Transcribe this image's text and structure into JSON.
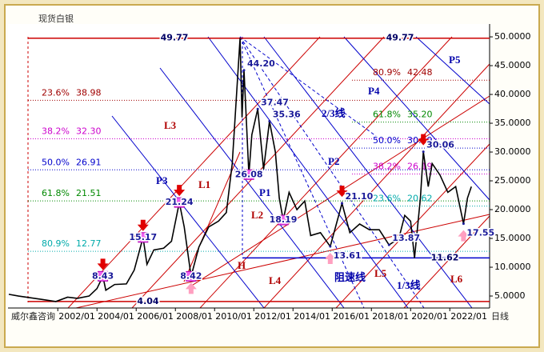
{
  "chart_data": {
    "type": "line",
    "title": "现货白银",
    "footer": "威尔鑫咨询",
    "period": "日线",
    "color": "#000000",
    "x": [
      1999.5,
      2000.0,
      2000.6,
      2001.2,
      2001.9,
      2002.5,
      2003.0,
      2003.6,
      2004.0,
      2004.3,
      2004.45,
      2004.9,
      2005.5,
      2005.9,
      2006.35,
      2006.55,
      2006.9,
      2007.4,
      2007.8,
      2008.2,
      2008.45,
      2008.8,
      2009.2,
      2009.7,
      2010.2,
      2010.6,
      2010.9,
      2011.3,
      2011.4,
      2011.5,
      2011.75,
      2011.9,
      2012.2,
      2012.5,
      2012.8,
      2013.1,
      2013.3,
      2013.5,
      2013.8,
      2014.2,
      2014.6,
      2014.9,
      2015.4,
      2015.9,
      2016.5,
      2016.9,
      2017.4,
      2017.9,
      2018.4,
      2018.9,
      2019.4,
      2019.7,
      2020.0,
      2020.2,
      2020.5,
      2020.65,
      2020.9,
      2021.1,
      2021.5,
      2021.9,
      2022.3,
      2022.7,
      2022.9,
      2023.1
    ],
    "values": [
      5.3,
      5.0,
      4.7,
      4.4,
      4.04,
      4.8,
      4.6,
      5.0,
      6.3,
      8.43,
      6.0,
      7.0,
      7.1,
      9.5,
      15.17,
      10.5,
      13.0,
      13.3,
      14.5,
      21.24,
      17.0,
      8.42,
      13.5,
      17.0,
      18.0,
      19.5,
      28.0,
      49.77,
      36.0,
      44.2,
      26.08,
      33.0,
      37.47,
      27.0,
      35.36,
      30.0,
      22.0,
      18.19,
      23.0,
      20.0,
      21.5,
      15.5,
      16.0,
      13.61,
      21.1,
      16.0,
      17.5,
      16.5,
      16.5,
      13.87,
      15.0,
      19.0,
      18.0,
      11.62,
      22.0,
      30.06,
      24.0,
      28.0,
      26.0,
      23.0,
      24.0,
      17.55,
      22.0,
      24.0
    ],
    "xlim": [
      1999.46,
      2024.03
    ],
    "xticks": [
      {
        "value": 2002,
        "label": "2002/01"
      },
      {
        "value": 2004,
        "label": "2004/01"
      },
      {
        "value": 2006,
        "label": "2006/01"
      },
      {
        "value": 2008,
        "label": "2008/01"
      },
      {
        "value": 2010,
        "label": "2010/01"
      },
      {
        "value": 2012,
        "label": "2012/01"
      },
      {
        "value": 2014,
        "label": "2014/01"
      },
      {
        "value": 2016,
        "label": "2016/01"
      },
      {
        "value": 2018,
        "label": "2018/01"
      },
      {
        "value": 2020,
        "label": "2020/01"
      },
      {
        "value": 2022,
        "label": "2022/01"
      }
    ],
    "ylim": [
      2.92,
      52.23
    ],
    "yticks": [
      {
        "value": 5,
        "label": "5.0000"
      },
      {
        "value": 10,
        "label": "10.0000"
      },
      {
        "value": 15,
        "label": "15.0000"
      },
      {
        "value": 20,
        "label": "20.0000"
      },
      {
        "value": 25,
        "label": "25.0000"
      },
      {
        "value": 30,
        "label": "30.0000"
      },
      {
        "value": 35,
        "label": "35.0000"
      },
      {
        "value": 40,
        "label": "40.0000"
      },
      {
        "value": 45,
        "label": "45.0000"
      },
      {
        "value": 50,
        "label": "50.0000"
      }
    ],
    "key_levels": [
      {
        "value": 49.77,
        "color": "#cc0000"
      },
      {
        "value": 4.04,
        "color": "#cc0000"
      },
      {
        "value": 11.62,
        "color": "#0000cc"
      }
    ],
    "fib_left": [
      {
        "ratio": "23.6%",
        "value": 38.98,
        "color": "#a00000"
      },
      {
        "ratio": "38.2%",
        "value": 32.3,
        "label": "32.30",
        "color": "#cc00cc"
      },
      {
        "ratio": "50.0%",
        "value": 26.91,
        "color": "#0000cc"
      },
      {
        "ratio": "61.8%",
        "value": 21.51,
        "color": "#008800"
      },
      {
        "ratio": "80.9%",
        "value": 12.77,
        "color": "#00aaaa"
      }
    ],
    "fib_right": [
      {
        "ratio": "80.9%",
        "value": 42.48,
        "color": "#a00000"
      },
      {
        "ratio": "61.8%",
        "value": 35.2,
        "label": "35.20",
        "color": "#008800"
      },
      {
        "ratio": "50.0%",
        "value": 30.69,
        "color": "#0000cc"
      },
      {
        "ratio": "38.2%",
        "value": 26.19,
        "color": "#cc00cc"
      },
      {
        "ratio": "23.6%",
        "value": 20.62,
        "color": "#00aaaa"
      }
    ],
    "annotations": [
      {
        "x": 2004.3,
        "value": 8.43,
        "marker": true,
        "arrow": "down"
      },
      {
        "x": 2006.35,
        "value": 15.17,
        "marker": true,
        "arrow": "down"
      },
      {
        "x": 2008.2,
        "value": 21.24,
        "marker": true,
        "arrow": "down"
      },
      {
        "x": 2008.8,
        "value": 8.42,
        "marker": true,
        "arrow": "up"
      },
      {
        "x": 2011.5,
        "value": 44.2,
        "label": "44.20",
        "marker": false
      },
      {
        "x": 2012.2,
        "value": 37.47,
        "marker": false
      },
      {
        "x": 2012.8,
        "value": 35.36,
        "marker": false
      },
      {
        "x": 2011.75,
        "value": 26.08,
        "marker": true
      },
      {
        "x": 2013.5,
        "value": 18.19,
        "marker": true
      },
      {
        "x": 2016.5,
        "value": 21.1,
        "label": "21.10",
        "marker": false,
        "arrow": "down"
      },
      {
        "x": 2015.9,
        "value": 13.61,
        "marker": false,
        "arrow": "up"
      },
      {
        "x": 2018.9,
        "value": 13.87,
        "marker": false
      },
      {
        "x": 2020.65,
        "value": 30.06,
        "marker": false,
        "arrow": "down"
      },
      {
        "x": 2022.7,
        "value": 17.55,
        "marker": false,
        "arrow": "up"
      }
    ],
    "line_labels": [
      "L1",
      "L2",
      "L3",
      "L4",
      "L5",
      "L6",
      "P1",
      "P2",
      "P3",
      "P4",
      "P5",
      "H",
      "2/3线",
      "1/3线",
      "阻速线"
    ]
  }
}
